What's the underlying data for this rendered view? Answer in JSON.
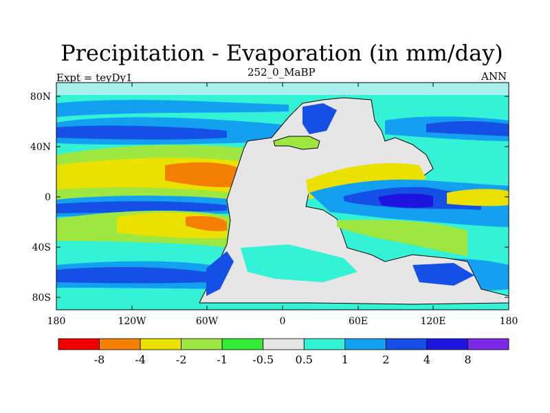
{
  "title": "Precipitation - Evaporation (in mm/day)",
  "left_label": "Expt = teyDy1",
  "center_label": "252_0_MaBP",
  "right_label": "ANN",
  "lat_ticks": [
    "80N",
    "40N",
    "0",
    "40S",
    "80S"
  ],
  "lon_ticks": [
    "180",
    "120W",
    "60W",
    "0",
    "60E",
    "120E",
    "180"
  ],
  "colorbar": {
    "colors": [
      "#f20000",
      "#f57f00",
      "#ebe100",
      "#9ee640",
      "#33ec33",
      "#e6e6e6",
      "#33f2d6",
      "#14a0f0",
      "#1450e6",
      "#1e14e0",
      "#7a28e6"
    ],
    "labels": [
      "-8",
      "-4",
      "-2",
      "-1",
      "-0.5",
      "0.5",
      "1",
      "2",
      "4",
      "8"
    ]
  }
}
